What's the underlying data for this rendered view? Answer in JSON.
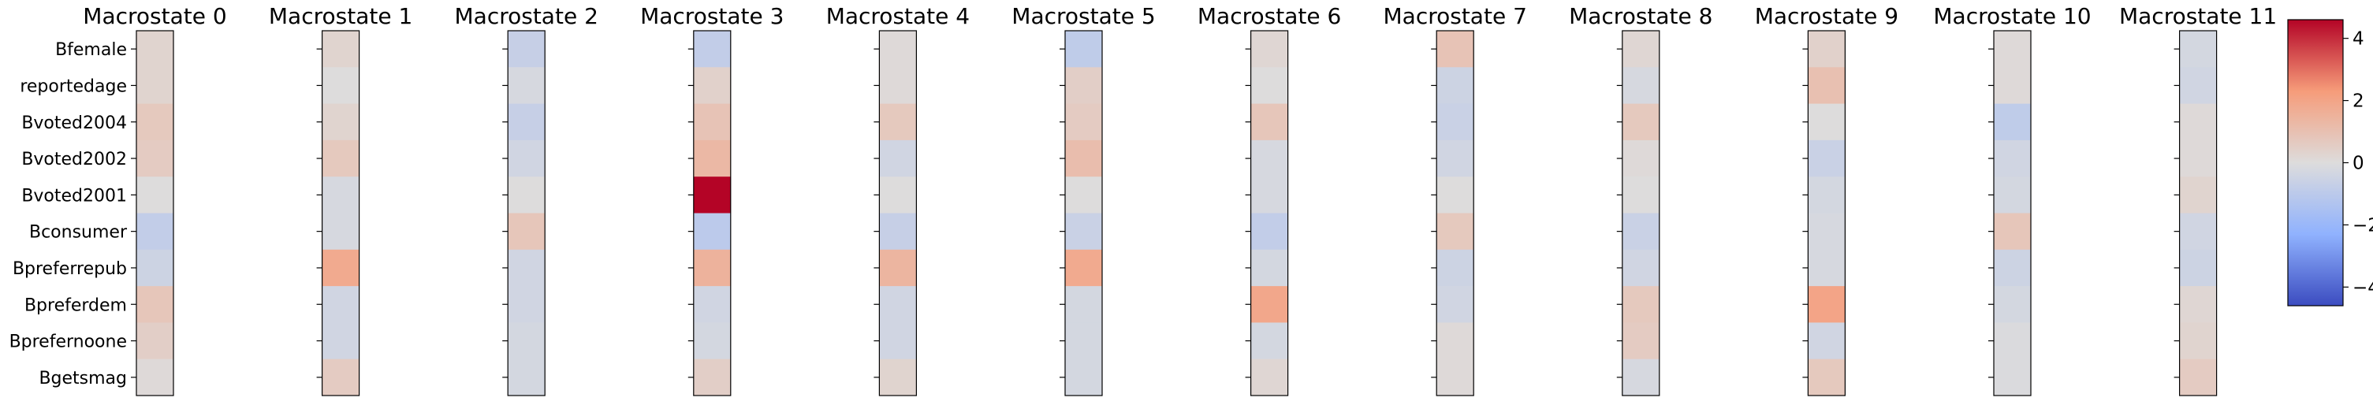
{
  "chart_data": {
    "type": "heatmap",
    "panel_titles": [
      "Macrostate 0",
      "Macrostate 1",
      "Macrostate 2",
      "Macrostate 3",
      "Macrostate 4",
      "Macrostate 5",
      "Macrostate 6",
      "Macrostate 7",
      "Macrostate 8",
      "Macrostate 9",
      "Macrostate 10",
      "Macrostate 11"
    ],
    "row_labels": [
      "Bfemale",
      "reportedage",
      "Bvoted2004",
      "Bvoted2002",
      "Bvoted2001",
      "Bconsumer",
      "Bpreferrepub",
      "Bpreferdem",
      "Bprefernoone",
      "Bgetsmag"
    ],
    "values": [
      [
        0.3,
        0.3,
        0.7,
        0.6,
        0.0,
        -0.8,
        -0.5,
        0.8,
        0.5,
        0.1
      ],
      [
        0.3,
        0.0,
        0.3,
        0.7,
        -0.2,
        -0.2,
        1.8,
        -0.4,
        -0.4,
        0.6
      ],
      [
        -0.7,
        -0.2,
        -0.7,
        -0.4,
        0.0,
        0.8,
        -0.4,
        -0.4,
        -0.3,
        -0.3
      ],
      [
        -0.8,
        0.4,
        0.9,
        1.3,
        4.6,
        -1.0,
        1.5,
        -0.4,
        -0.3,
        0.5
      ],
      [
        0.1,
        0.1,
        0.7,
        -0.4,
        0.0,
        -0.7,
        1.4,
        -0.4,
        -0.4,
        0.3
      ],
      [
        -0.9,
        0.5,
        0.6,
        1.1,
        0.0,
        -0.6,
        1.8,
        -0.3,
        -0.3,
        -0.3
      ],
      [
        0.2,
        0.0,
        0.8,
        -0.2,
        -0.2,
        -0.8,
        -0.3,
        1.9,
        -0.3,
        0.2
      ],
      [
        0.9,
        -0.5,
        -0.6,
        -0.4,
        0.0,
        0.7,
        -0.5,
        -0.4,
        0.1,
        0.1
      ],
      [
        0.2,
        -0.2,
        0.7,
        0.1,
        0.0,
        -0.6,
        -0.4,
        0.7,
        0.6,
        -0.2
      ],
      [
        0.4,
        1.0,
        0.0,
        -0.6,
        -0.3,
        -0.2,
        -0.2,
        2.0,
        -0.4,
        0.7
      ],
      [
        0.1,
        0.1,
        -0.9,
        -0.4,
        -0.3,
        0.8,
        -0.5,
        -0.3,
        -0.1,
        -0.1
      ],
      [
        -0.3,
        -0.4,
        0.1,
        0.1,
        0.3,
        -0.4,
        -0.5,
        0.2,
        0.3,
        0.6
      ]
    ],
    "colorbar": {
      "colormap": "coolwarm",
      "range": [
        -4.6,
        4.6
      ],
      "ticks": [
        -4,
        -2,
        0,
        2,
        4
      ],
      "tick_labels": [
        "−4",
        "−2",
        "0",
        "2",
        "4"
      ]
    }
  }
}
